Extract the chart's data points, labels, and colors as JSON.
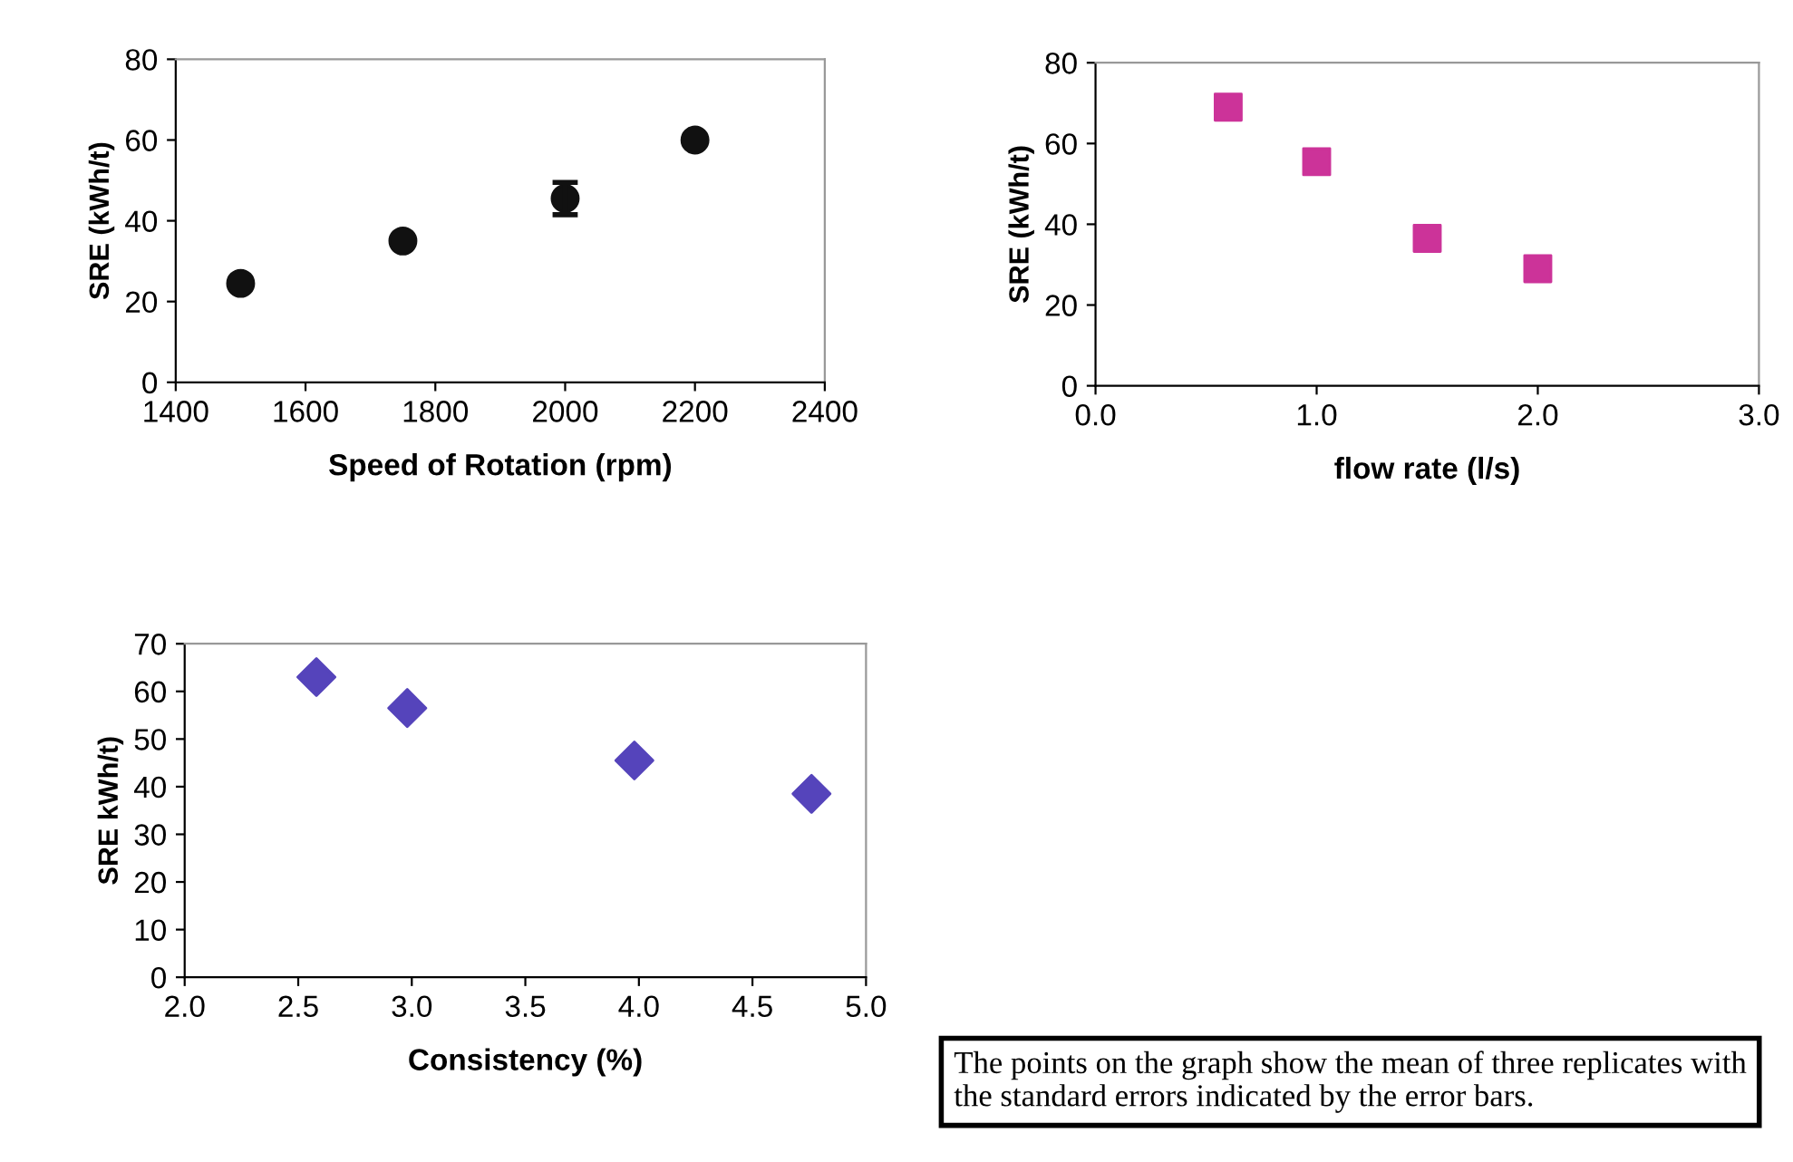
{
  "chart_data": [
    {
      "type": "scatter",
      "xlabel": "Speed of Rotation (rpm)",
      "ylabel": "SRE (kWh/t)",
      "xlim": [
        1400,
        2400
      ],
      "xticks": [
        1400,
        1600,
        1800,
        2000,
        2200,
        2400
      ],
      "ylim": [
        0,
        80
      ],
      "yticks": [
        0,
        20,
        40,
        60,
        80
      ],
      "marker": "circle",
      "grid": false,
      "x": [
        1500,
        1750,
        2000,
        2200
      ],
      "series": [
        {
          "color": "#111111",
          "values": [
            24.5,
            35,
            45.5,
            60
          ],
          "errors": [
            null,
            null,
            4,
            null
          ]
        }
      ]
    },
    {
      "type": "scatter",
      "xlabel": "flow rate (l/s)",
      "ylabel": "SRE (kWh/t)",
      "xlim": [
        0,
        3
      ],
      "xticks": [
        {
          "value": 0,
          "label": "0.0"
        },
        {
          "value": 1,
          "label": "1.0"
        },
        {
          "value": 2,
          "label": "2.0"
        },
        {
          "value": 3,
          "label": "3.0"
        }
      ],
      "ylim": [
        0,
        80
      ],
      "yticks": [
        0,
        20,
        40,
        60,
        80
      ],
      "marker": "square",
      "grid": false,
      "x": [
        0.6,
        1.0,
        1.5,
        2.0
      ],
      "series": [
        {
          "color": "#cc3399",
          "values": [
            69,
            55.5,
            36.5,
            29
          ]
        }
      ]
    },
    {
      "type": "scatter",
      "xlabel": "Consistency (%)",
      "ylabel": "SRE kWh/t)",
      "xlim": [
        2,
        5
      ],
      "xticks": [
        {
          "value": 2,
          "label": "2.0"
        },
        2.5,
        {
          "value": 3,
          "label": "3.0"
        },
        3.5,
        {
          "value": 4,
          "label": "4.0"
        },
        4.5,
        {
          "value": 5,
          "label": "5.0"
        }
      ],
      "ylim": [
        0,
        70
      ],
      "yticks": [
        0,
        10,
        20,
        30,
        40,
        50,
        60,
        70
      ],
      "marker": "diamond",
      "grid": false,
      "x": [
        2.58,
        2.98,
        3.98,
        4.76
      ],
      "series": [
        {
          "color": "#5544bb",
          "values": [
            63,
            56.5,
            45.5,
            38.5
          ]
        }
      ]
    },
    {
      "type": "other",
      "annotations": [
        "The points on the graph show the mean of three replicates with the standard errors indicated by the error bars."
      ]
    }
  ]
}
